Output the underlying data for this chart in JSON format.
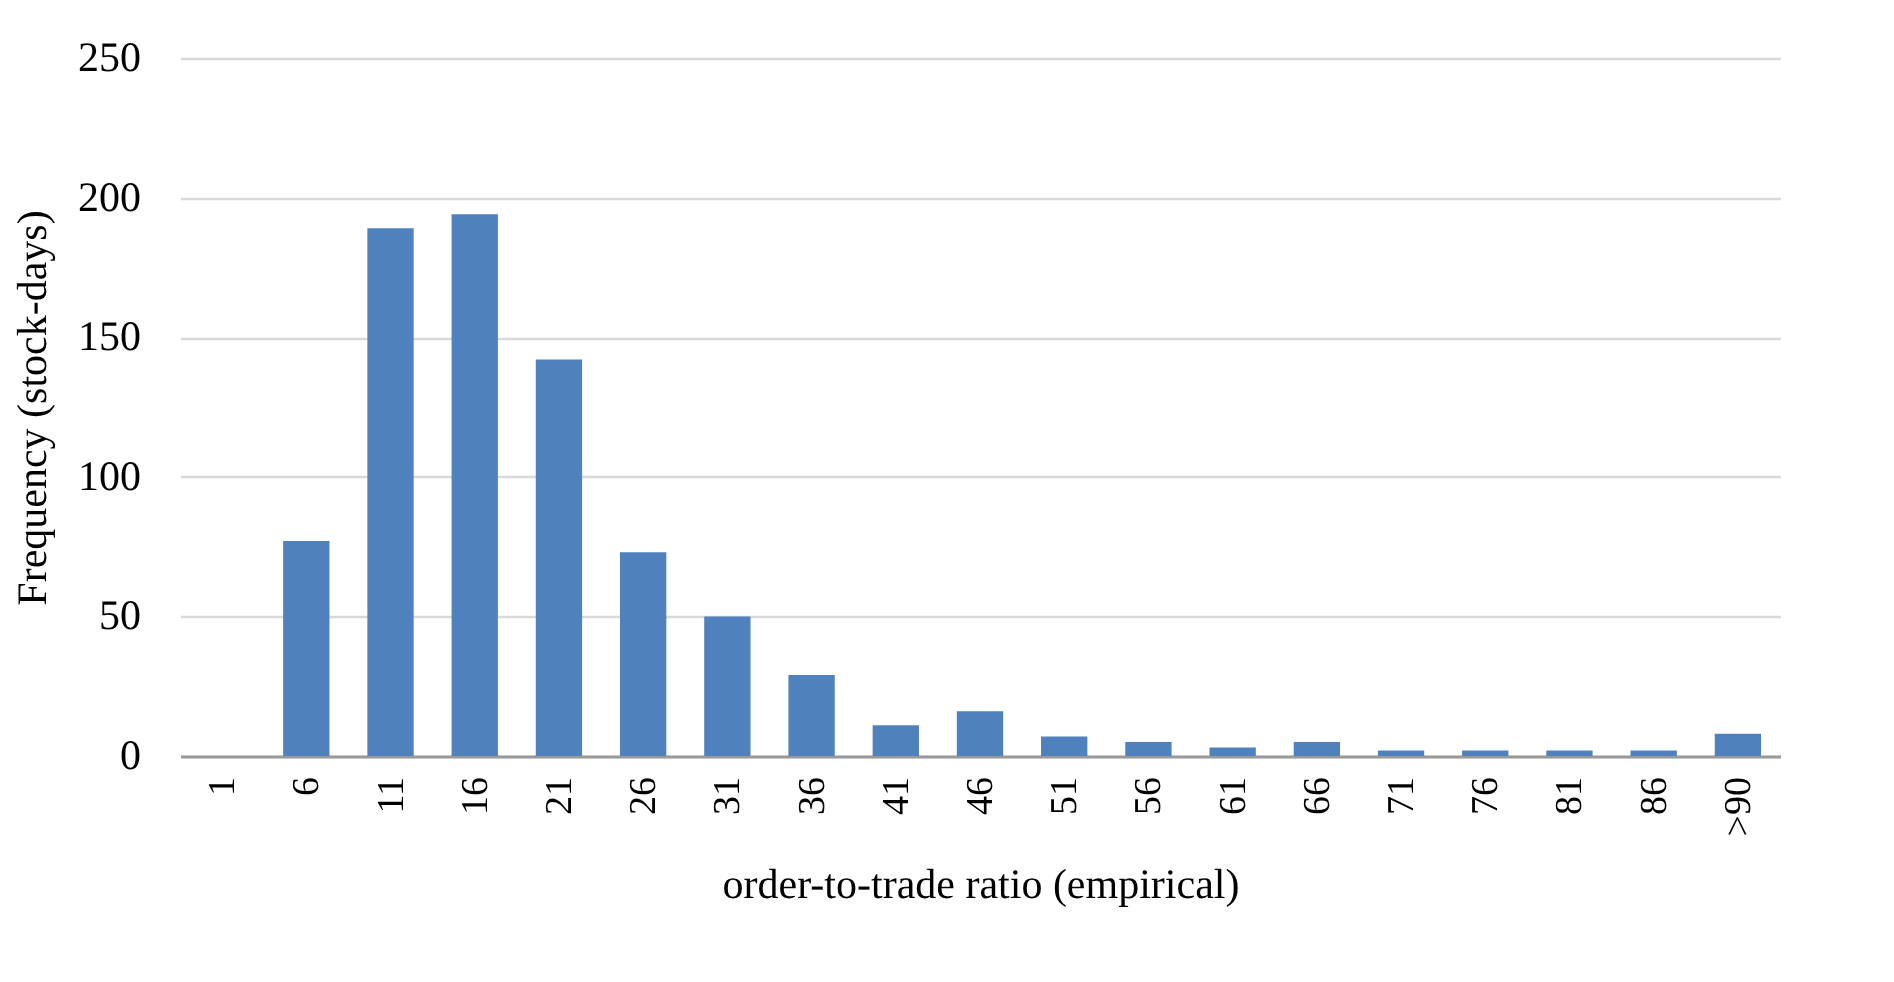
{
  "chart_data": {
    "type": "bar",
    "xlabel": "order-to-trade ratio (empirical)",
    "ylabel": "Frequency (stock-days)",
    "categories": [
      "1",
      "6",
      "11",
      "16",
      "21",
      "26",
      "31",
      "36",
      "41",
      "46",
      "51",
      "56",
      "61",
      "66",
      "71",
      "76",
      "81",
      "86",
      ">90"
    ],
    "values": [
      0,
      77,
      189,
      194,
      142,
      73,
      50,
      29,
      11,
      16,
      7,
      5,
      3,
      5,
      2,
      2,
      2,
      2,
      8
    ],
    "color": "#4f81bd",
    "ylim": [
      0,
      250
    ],
    "yticks": [
      0,
      50,
      100,
      150,
      200,
      250
    ],
    "grid": "y"
  }
}
